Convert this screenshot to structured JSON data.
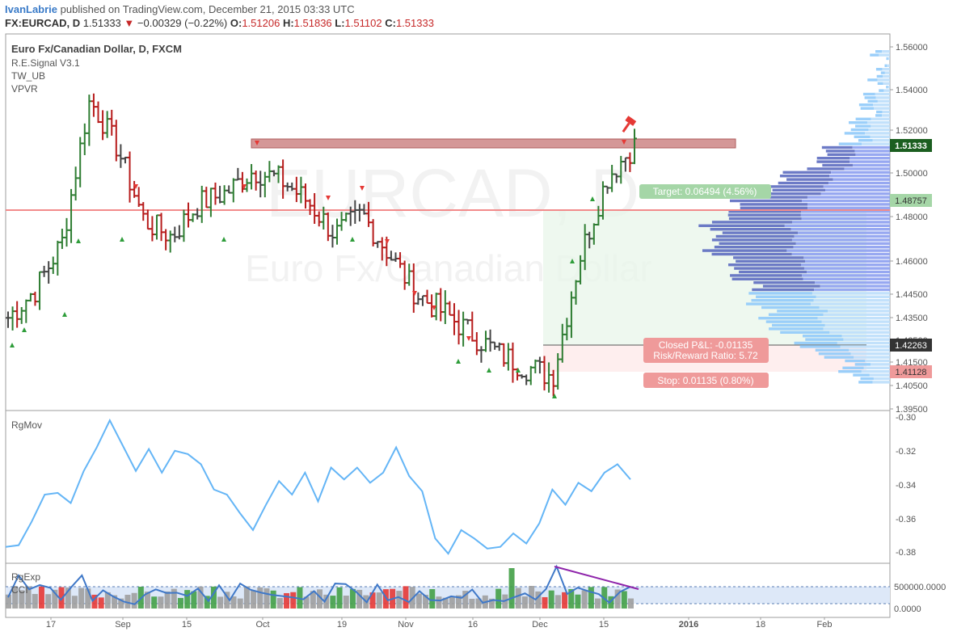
{
  "header": {
    "user": "IvanLabrie",
    "published": "published on TradingView.com, December 21, 2015 03:33 UTC",
    "symbol": "FX:EURCAD, D",
    "last": "1.51333",
    "arrow": "▼",
    "change": "−0.00329 (−0.22%)",
    "o_label": "O:",
    "o_value": "1.51206",
    "h_label": "H:",
    "h_value": "1.51836",
    "l_label": "L:",
    "l_value": "1.51102",
    "c_label": "C:",
    "c_value": "1.51333"
  },
  "main_pane": {
    "title": "Euro Fx/Canadian Dollar, D, FXCM",
    "indicators": [
      "R.E.Signal V3.1",
      "TW_UB",
      "VPVR"
    ],
    "watermark_symbol": "EURCAD, D",
    "watermark_name": "Euro Fx/Canadian Dollar",
    "price_ticks": [
      "1.56000",
      "1.54000",
      "1.52000",
      "1.50000",
      "1.48000",
      "1.46000",
      "1.44500",
      "1.43500",
      "1.42500",
      "1.41500",
      "1.40500",
      "1.39500"
    ],
    "last_price_tag": "1.51333",
    "target_level_tag": "1.48757",
    "entry_tag": "1.42263",
    "stop_tag": "1.41128",
    "target_label": "Target: 0.06494 (4.56%)",
    "pnl_label_1": "Closed P&L: -0.01135",
    "pnl_label_2": "Risk/Reward Ratio: 5.72",
    "stop_label": "Stop: 0.01135 (0.80%)"
  },
  "rgmov_pane": {
    "title": "RgMov",
    "ticks": [
      "-0.30",
      "-0.32",
      "-0.34",
      "-0.36",
      "-0.38"
    ]
  },
  "rgexp_pane": {
    "title": "RgExp",
    "subtitle": "CCI",
    "ticks": [
      "500000.0000",
      "0.0000"
    ]
  },
  "time_axis": [
    "17",
    "Sep",
    "15",
    "Oct",
    "19",
    "Nov",
    "16",
    "Dec",
    "15",
    "2016",
    "18",
    "Feb"
  ],
  "colors": {
    "up_bar": "#2e7d32",
    "down_bar": "#b71c1c",
    "neutral_bar": "#444444",
    "rgmov_line": "#64b5f6",
    "vol_blue": "#5c6bc0",
    "vol_light": "#90caf9",
    "resistance_box": "#c97a7a",
    "target_tag": "#a5d6a7",
    "stop_tag": "#ef9a9a",
    "red_line": "#f48080"
  },
  "chart_data": {
    "type": "ohlc",
    "ohlc_approx_weekly_close": [
      1.435,
      1.447,
      1.469,
      1.535,
      1.512,
      1.478,
      1.471,
      1.486,
      1.491,
      1.501,
      1.497,
      1.487,
      1.472,
      1.481,
      1.463,
      1.445,
      1.437,
      1.428,
      1.419,
      1.413,
      1.409,
      1.462,
      1.498,
      1.513
    ],
    "rgmov_series": [
      -0.377,
      -0.376,
      -0.362,
      -0.346,
      -0.345,
      -0.351,
      -0.332,
      -0.318,
      -0.302,
      -0.317,
      -0.332,
      -0.319,
      -0.333,
      -0.32,
      -0.322,
      -0.328,
      -0.343,
      -0.346,
      -0.357,
      -0.367,
      -0.352,
      -0.338,
      -0.346,
      -0.333,
      -0.35,
      -0.33,
      -0.337,
      -0.33,
      -0.339,
      -0.333,
      -0.318,
      -0.335,
      -0.344,
      -0.372,
      -0.381,
      -0.367,
      -0.372,
      -0.378,
      -0.377,
      -0.369,
      -0.375,
      -0.363,
      -0.343,
      -0.352,
      -0.339,
      -0.344,
      -0.333,
      -0.328,
      -0.337
    ],
    "levels": {
      "resistance_zone": [
        1.5125,
        1.5165
      ],
      "target_line": 1.48757,
      "entry": 1.42263,
      "stop": 1.41128
    }
  }
}
